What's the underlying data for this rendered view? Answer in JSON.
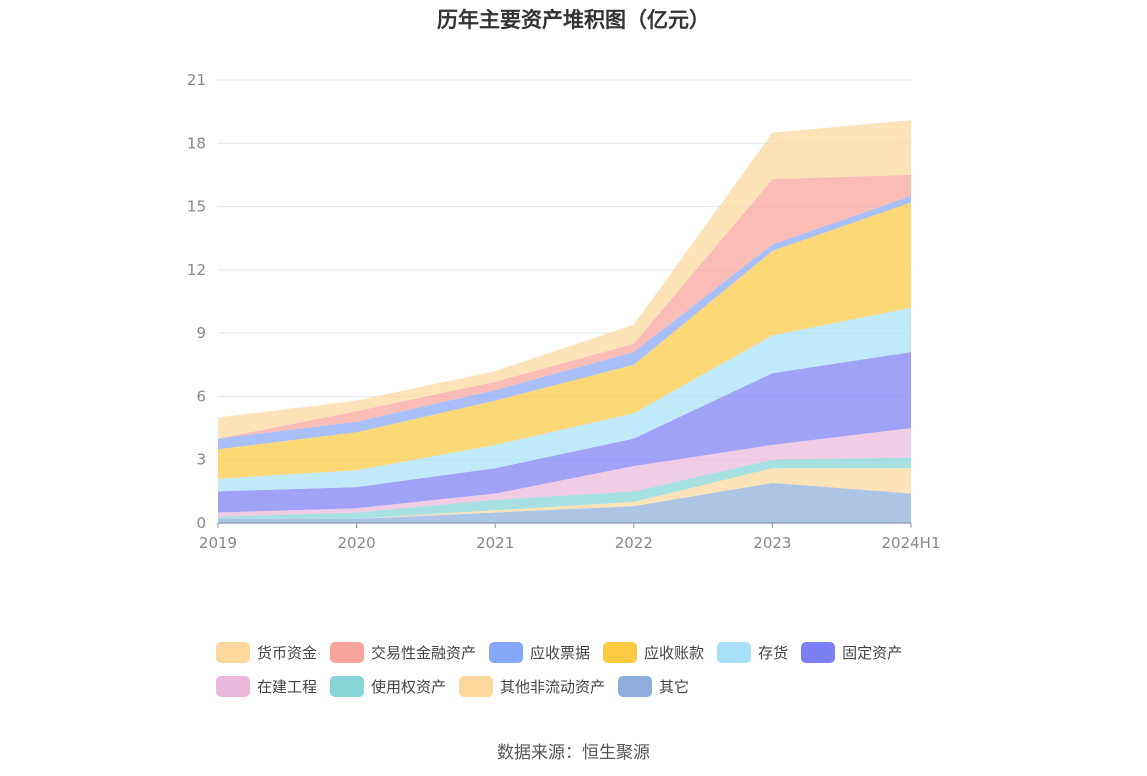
{
  "title": "历年主要资产堆积图（亿元）",
  "source": "数据来源：恒生聚源",
  "chart_data": {
    "type": "area",
    "stacked": true,
    "categories": [
      "2019",
      "2020",
      "2021",
      "2022",
      "2023",
      "2024H1"
    ],
    "y_ticks": [
      "0",
      "3",
      "6",
      "9",
      "12",
      "15",
      "18",
      "21"
    ],
    "ylim": [
      0,
      21
    ],
    "grid": true,
    "legend_position": "bottom",
    "series": [
      {
        "name": "其它",
        "color": "#8eaedb",
        "values": [
          0.2,
          0.2,
          0.5,
          0.8,
          1.9,
          1.4
        ]
      },
      {
        "name": "其他非流动资产",
        "color": "#fdd89e",
        "values": [
          0.0,
          0.0,
          0.1,
          0.2,
          0.7,
          1.2
        ]
      },
      {
        "name": "使用权资产",
        "color": "#85d6d6",
        "values": [
          0.1,
          0.3,
          0.5,
          0.5,
          0.4,
          0.5
        ]
      },
      {
        "name": "在建工程",
        "color": "#eab8db",
        "values": [
          0.2,
          0.2,
          0.3,
          1.2,
          0.7,
          1.4
        ]
      },
      {
        "name": "固定资产",
        "color": "#7b7ef4",
        "values": [
          1.0,
          1.0,
          1.2,
          1.3,
          3.4,
          3.6
        ]
      },
      {
        "name": "存货",
        "color": "#a8e0fa",
        "values": [
          0.6,
          0.8,
          1.1,
          1.2,
          1.8,
          2.1
        ]
      },
      {
        "name": "应收账款",
        "color": "#fcc943",
        "values": [
          1.4,
          1.8,
          2.1,
          2.3,
          4.0,
          5.0
        ]
      },
      {
        "name": "应收票据",
        "color": "#86a6f8",
        "values": [
          0.5,
          0.5,
          0.5,
          0.6,
          0.3,
          0.3
        ]
      },
      {
        "name": "交易性金融资产",
        "color": "#f7a49a",
        "values": [
          0.0,
          0.5,
          0.4,
          0.4,
          3.1,
          1.0
        ]
      },
      {
        "name": "货币资金",
        "color": "#fdd89e",
        "values": [
          1.0,
          0.5,
          0.5,
          0.9,
          2.2,
          2.6
        ]
      }
    ]
  },
  "legend": [
    {
      "label": "货币资金",
      "color": "#fdd89e"
    },
    {
      "label": "交易性金融资产",
      "color": "#f7a49a"
    },
    {
      "label": "应收票据",
      "color": "#86a6f8"
    },
    {
      "label": "应收账款",
      "color": "#fcc943"
    },
    {
      "label": "存货",
      "color": "#a8e0fa"
    },
    {
      "label": "固定资产",
      "color": "#7b7ef4"
    },
    {
      "label": "在建工程",
      "color": "#eab8db"
    },
    {
      "label": "使用权资产",
      "color": "#85d6d6"
    },
    {
      "label": "其他非流动资产",
      "color": "#fdd89e"
    },
    {
      "label": "其它",
      "color": "#8eaedb"
    }
  ]
}
